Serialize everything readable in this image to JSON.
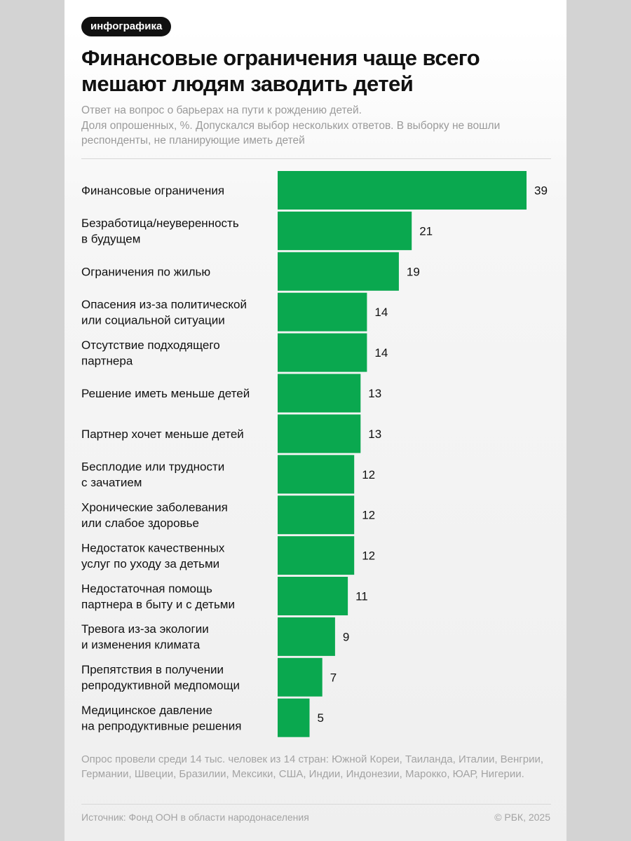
{
  "header": {
    "tag": "инфографика",
    "title": "Финансовые ограничения чаще всего мешают людям заводить детей",
    "subtitle_lines": [
      "Ответ на вопрос о барьерах на пути к рождению детей.",
      "Доля опрошенных, %. Допускался выбор нескольких ответов. В выборку не вошли респонденты, не планирующие иметь детей"
    ]
  },
  "chart_data": {
    "type": "bar",
    "orientation": "horizontal",
    "unit": "%",
    "bar_color": "#0aa84f",
    "categories": [
      [
        "Финансовые ограничения"
      ],
      [
        "Безработица/неуверенность",
        "в будущем"
      ],
      [
        "Ограничения по жилью"
      ],
      [
        "Опасения из-за политической",
        "или социальной ситуации"
      ],
      [
        "Отсутствие подходящего",
        "партнера"
      ],
      [
        "Решение иметь меньше детей"
      ],
      [
        "Партнер хочет меньше детей"
      ],
      [
        "Бесплодие или трудности",
        "с зачатием"
      ],
      [
        "Хронические заболевания",
        "или слабое здоровье"
      ],
      [
        "Недостаток качественных",
        "услуг по уходу за детьми"
      ],
      [
        "Недостаточная помощь",
        "партнера в быту и с детьми"
      ],
      [
        "Тревога из-за экологии",
        "и изменения климата"
      ],
      [
        "Препятствия в получении",
        "репродуктивной медпомощи"
      ],
      [
        "Медицинское давление",
        "на репродуктивные решения"
      ]
    ],
    "values": [
      39,
      21,
      19,
      14,
      14,
      13,
      13,
      12,
      12,
      12,
      11,
      9,
      7,
      5
    ],
    "xlim": [
      0,
      39
    ]
  },
  "footer": {
    "note": "Опрос провели среди 14 тыс. человек из 14 стран: Южной Кореи, Таиланда, Италии, Венгрии, Германии, Швеции, Бразилии, Мексики, США, Индии, Индонезии, Марокко, ЮАР, Нигерии.",
    "source": "Источник: Фонд ООН в области народонаселения",
    "copyright": "© РБК, 2025"
  }
}
